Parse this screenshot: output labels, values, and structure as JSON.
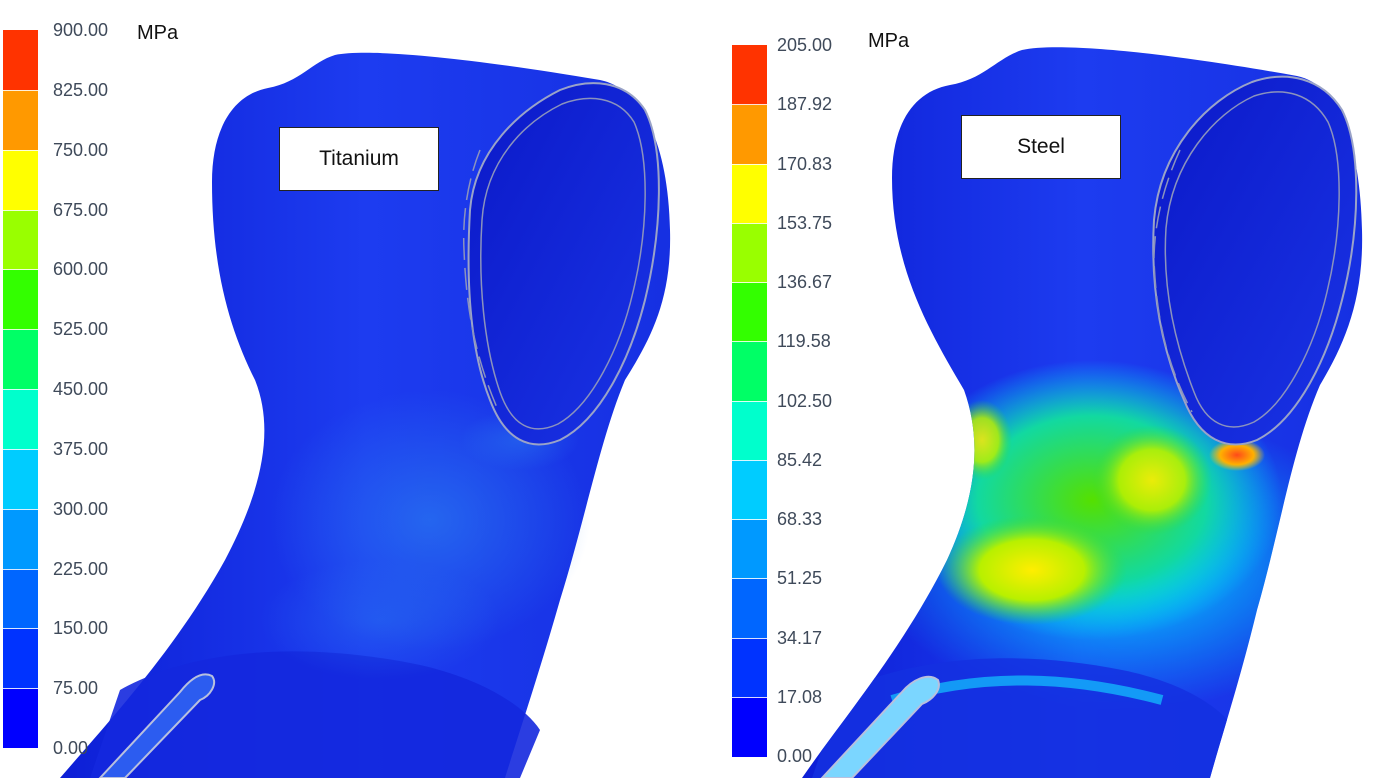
{
  "colors": {
    "scale": [
      "#0000ff",
      "#0033ff",
      "#0066ff",
      "#0099ff",
      "#00ccff",
      "#00ffcc",
      "#00ff66",
      "#33ff00",
      "#99ff00",
      "#ffff00",
      "#ff9900",
      "#ff3300"
    ],
    "model_base": "#1a2ee8"
  },
  "panels": [
    {
      "id": "titanium",
      "material_label": "Titanium",
      "unit": "MPa",
      "legend_ticks": [
        "900.00",
        "825.00",
        "750.00",
        "675.00",
        "600.00",
        "525.00",
        "450.00",
        "375.00",
        "300.00",
        "225.00",
        "150.00",
        "75.00",
        "0.00"
      ]
    },
    {
      "id": "steel",
      "material_label": "Steel",
      "unit": "MPa",
      "legend_ticks": [
        "205.00",
        "187.92",
        "170.83",
        "153.75",
        "136.67",
        "119.58",
        "102.50",
        "85.42",
        "68.33",
        "51.25",
        "34.17",
        "17.08",
        "0.00"
      ]
    }
  ]
}
